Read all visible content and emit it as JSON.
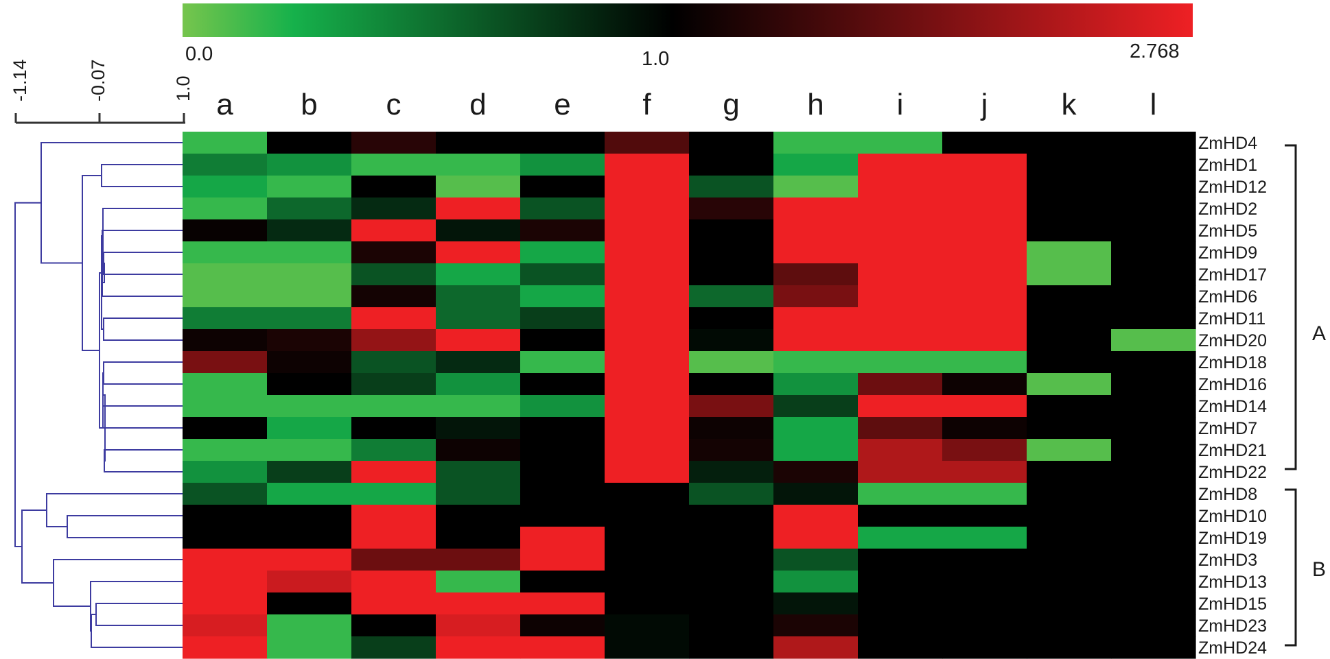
{
  "chart_data": {
    "type": "heatmap",
    "title": "",
    "color_scale": {
      "min_label": "0.0",
      "mid_label": "1.0",
      "max_label": "2.768",
      "min": 0.0,
      "mid": 1.0,
      "max": 2.768,
      "colors": [
        "#76c54d",
        "#16b14b",
        "#000000",
        "#ee2024"
      ]
    },
    "dendrogram_scale": {
      "tick_labels": [
        "-1.14",
        "-0.07",
        "1.0"
      ]
    },
    "columns": [
      "a",
      "b",
      "c",
      "d",
      "e",
      "f",
      "g",
      "h",
      "i",
      "j",
      "k",
      "l"
    ],
    "rows": [
      "ZmHD4",
      "ZmHD1",
      "ZmHD12",
      "ZmHD2",
      "ZmHD5",
      "ZmHD9",
      "ZmHD17",
      "ZmHD6",
      "ZmHD11",
      "ZmHD20",
      "ZmHD18",
      "ZmHD16",
      "ZmHD14",
      "ZmHD7",
      "ZmHD21",
      "ZmHD22",
      "ZmHD8",
      "ZmHD10",
      "ZmHD19",
      "ZmHD3",
      "ZmHD13",
      "ZmHD15",
      "ZmHD23",
      "ZmHD24"
    ],
    "groups": [
      {
        "label": "A",
        "from": "ZmHD4",
        "to": "ZmHD22"
      },
      {
        "label": "B",
        "from": "ZmHD8",
        "to": "ZmHD24"
      }
    ],
    "values": [
      [
        0.1,
        1.0,
        1.3,
        1.0,
        1.0,
        1.6,
        1.0,
        0.1,
        0.1,
        1.0,
        1.0,
        1.0
      ],
      [
        0.4,
        0.3,
        0.1,
        0.1,
        0.3,
        2.768,
        1.0,
        0.2,
        2.768,
        2.768,
        1.0,
        1.0
      ],
      [
        0.2,
        0.1,
        1.0,
        0.05,
        1.0,
        2.768,
        0.6,
        0.05,
        2.768,
        2.768,
        1.0,
        1.0
      ],
      [
        0.1,
        0.5,
        0.8,
        2.768,
        0.6,
        2.768,
        1.3,
        2.768,
        2.768,
        2.768,
        1.0,
        1.0
      ],
      [
        1.05,
        0.8,
        2.768,
        0.9,
        1.2,
        2.768,
        1.0,
        2.768,
        2.768,
        2.768,
        1.0,
        1.0
      ],
      [
        0.1,
        0.1,
        1.2,
        2.768,
        0.2,
        2.768,
        1.0,
        2.768,
        2.768,
        2.768,
        0.05,
        1.0
      ],
      [
        0.05,
        0.05,
        0.6,
        0.2,
        0.6,
        2.768,
        1.0,
        1.7,
        2.768,
        2.768,
        0.05,
        1.0
      ],
      [
        0.05,
        0.05,
        1.15,
        0.5,
        0.2,
        2.768,
        0.5,
        1.9,
        2.768,
        2.768,
        1.0,
        1.0
      ],
      [
        0.4,
        0.4,
        2.768,
        0.5,
        0.7,
        2.768,
        1.0,
        2.768,
        2.768,
        2.768,
        1.0,
        1.0
      ],
      [
        1.1,
        1.2,
        2.1,
        2.768,
        1.0,
        2.768,
        0.95,
        2.768,
        2.768,
        2.768,
        1.0,
        0.05
      ],
      [
        1.9,
        1.1,
        0.6,
        0.8,
        0.1,
        2.768,
        0.05,
        0.1,
        0.1,
        0.1,
        1.0,
        1.0
      ],
      [
        0.1,
        1.0,
        0.7,
        0.3,
        1.0,
        2.768,
        1.0,
        0.3,
        1.8,
        1.1,
        0.05,
        1.0
      ],
      [
        0.1,
        0.1,
        0.1,
        0.1,
        0.3,
        2.768,
        1.9,
        0.7,
        2.768,
        2.768,
        1.0,
        1.0
      ],
      [
        1.0,
        0.2,
        1.0,
        0.9,
        1.0,
        2.768,
        1.1,
        0.2,
        1.7,
        1.1,
        1.0,
        1.0
      ],
      [
        0.1,
        0.1,
        0.4,
        1.1,
        1.0,
        2.768,
        1.15,
        0.2,
        2.3,
        1.9,
        0.05,
        1.0
      ],
      [
        0.3,
        0.7,
        2.768,
        0.6,
        1.0,
        2.768,
        0.85,
        1.2,
        2.3,
        2.3,
        1.0,
        1.0
      ],
      [
        0.6,
        0.2,
        0.2,
        0.6,
        1.0,
        1.0,
        0.6,
        0.9,
        0.1,
        0.1,
        1.0,
        1.0
      ],
      [
        1.0,
        1.0,
        2.768,
        1.0,
        1.0,
        1.0,
        1.0,
        2.768,
        1.0,
        1.0,
        1.0,
        1.0
      ],
      [
        1.0,
        1.0,
        2.768,
        1.0,
        2.768,
        1.0,
        1.0,
        2.768,
        0.2,
        0.2,
        1.0,
        1.0
      ],
      [
        2.768,
        2.768,
        1.8,
        1.8,
        2.768,
        1.0,
        1.0,
        0.6,
        1.0,
        1.0,
        1.0,
        1.0
      ],
      [
        2.768,
        2.5,
        2.768,
        0.1,
        1.0,
        1.0,
        1.0,
        0.3,
        1.0,
        1.0,
        1.0,
        1.0
      ],
      [
        2.768,
        1.0,
        2.768,
        2.768,
        2.768,
        1.0,
        1.0,
        0.9,
        1.0,
        1.0,
        1.0,
        1.0
      ],
      [
        2.6,
        0.1,
        1.0,
        2.6,
        1.1,
        0.95,
        1.0,
        1.2,
        1.0,
        1.0,
        1.0,
        1.0
      ],
      [
        2.768,
        0.1,
        0.7,
        2.768,
        2.768,
        0.95,
        1.0,
        2.3,
        1.0,
        1.0,
        1.0,
        1.0
      ]
    ]
  },
  "colors": {
    "dendrogram": "#3d3ba0",
    "text": "#1a1a1a",
    "cell_low": "#76c54d",
    "cell_low_mid": "#16b14b",
    "cell_mid": "#000000",
    "cell_high": "#ee2024"
  }
}
